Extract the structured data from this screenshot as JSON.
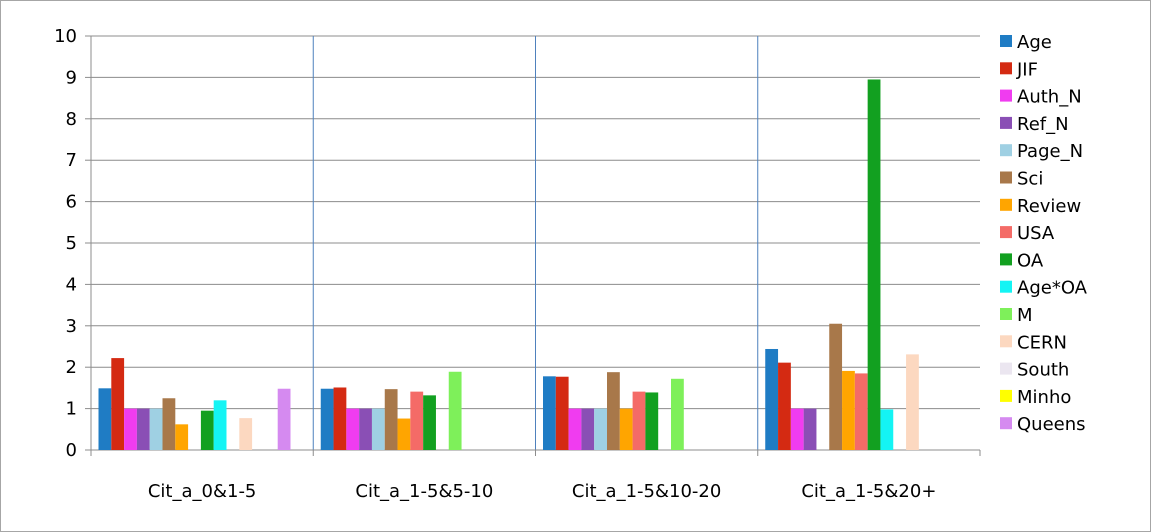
{
  "chart_data": {
    "type": "bar",
    "categories": [
      "Cit_a_0&1-5",
      "Cit_a_1-5&5-10",
      "Cit_a_1-5&10-20",
      "Cit_a_1-5&20+"
    ],
    "ylim": [
      0,
      10
    ],
    "yticks": [
      0,
      1,
      2,
      3,
      4,
      5,
      6,
      7,
      8,
      9,
      10
    ],
    "grid": true,
    "legend_position": "right",
    "series": [
      {
        "name": "Age",
        "color": "#1f7cc4",
        "values": [
          1.49,
          1.48,
          1.78,
          2.44
        ]
      },
      {
        "name": "JIF",
        "color": "#d42a12",
        "values": [
          2.22,
          1.51,
          1.77,
          2.11
        ]
      },
      {
        "name": "Auth_N",
        "color": "#f03cf0",
        "values": [
          1.0,
          1.0,
          1.0,
          1.0
        ]
      },
      {
        "name": "Ref_N",
        "color": "#8a4fb5",
        "values": [
          1.0,
          1.0,
          1.0,
          1.0
        ]
      },
      {
        "name": "Page_N",
        "color": "#9fd0e3",
        "values": [
          1.0,
          1.0,
          1.0,
          null
        ]
      },
      {
        "name": "Sci",
        "color": "#a8784a",
        "values": [
          1.25,
          1.47,
          1.88,
          3.05
        ]
      },
      {
        "name": "Review",
        "color": "#ffa500",
        "values": [
          0.62,
          0.76,
          1.0,
          1.91
        ]
      },
      {
        "name": "USA",
        "color": "#f46b67",
        "values": [
          null,
          1.41,
          1.41,
          1.85
        ]
      },
      {
        "name": "OA",
        "color": "#12a020",
        "values": [
          0.95,
          1.32,
          1.39,
          8.95
        ]
      },
      {
        "name": "Age*OA",
        "color": "#14f4f4",
        "values": [
          1.2,
          null,
          null,
          0.98
        ]
      },
      {
        "name": "M",
        "color": "#7ef05a",
        "values": [
          null,
          1.89,
          1.72,
          null
        ]
      },
      {
        "name": "CERN",
        "color": "#fcd8c0",
        "values": [
          0.77,
          null,
          null,
          2.31
        ]
      },
      {
        "name": "South",
        "color": "#ebe6f0",
        "values": [
          null,
          null,
          null,
          null
        ]
      },
      {
        "name": "Minho",
        "color": "#ffff00",
        "values": [
          null,
          null,
          null,
          null
        ]
      },
      {
        "name": "Queens",
        "color": "#d58af0",
        "values": [
          1.48,
          null,
          null,
          null
        ]
      }
    ]
  }
}
